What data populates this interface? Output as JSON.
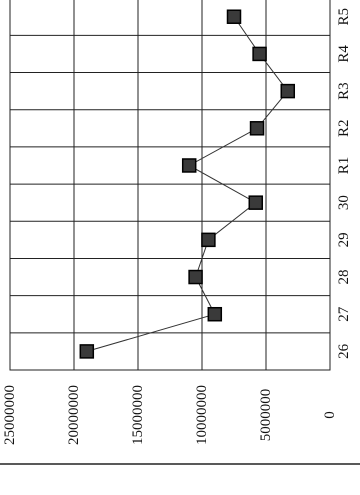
{
  "chart_data": {
    "type": "line",
    "orientation": "rotated-90",
    "title": "",
    "xlabel": "",
    "ylabel": "",
    "categories": [
      "26",
      "27",
      "28",
      "29",
      "30",
      "R1",
      "R2",
      "R3",
      "R4",
      "R5"
    ],
    "series": [
      {
        "values": [
          19000000,
          9000000,
          10500000,
          9500000,
          5800000,
          11000000,
          5700000,
          3300000,
          5500000,
          7500000
        ],
        "marker": "square",
        "color": "#333333"
      }
    ],
    "ylim": [
      0,
      25000000
    ],
    "yticks": [
      0,
      5000000,
      10000000,
      15000000,
      20000000,
      25000000
    ],
    "ytick_labels": [
      "0",
      "5000000",
      "10000000",
      "15000000",
      "20000000",
      "25000000"
    ],
    "grid": true,
    "legend": "none"
  }
}
